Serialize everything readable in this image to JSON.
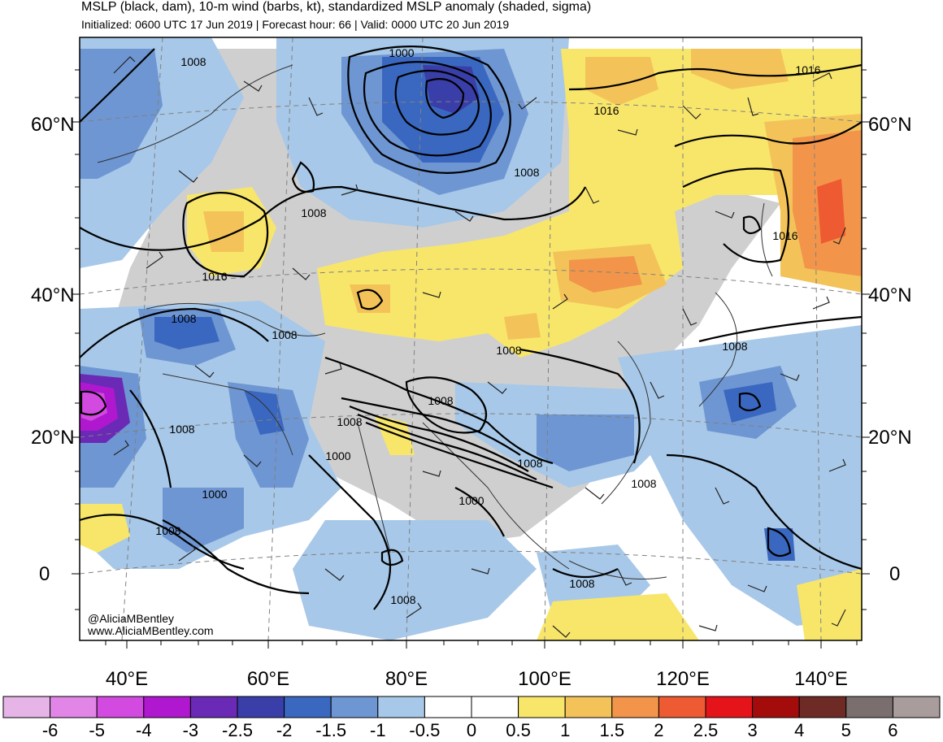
{
  "title": "MSLP (black, dam), 10-m wind (barbs, kt), standardized MSLP anomaly (shaded, sigma)",
  "subtitle": "Initialized: 0600 UTC 17 Jun 2019 | Forecast hour: 66 | Valid: 0000 UTC 20 Jun 2019",
  "lat_labels": [
    "60°N",
    "40°N",
    "20°N",
    "0"
  ],
  "lon_labels": [
    "40°E",
    "60°E",
    "80°E",
    "100°E",
    "120°E",
    "140°E"
  ],
  "contour_labels": [
    "1008",
    "1000",
    "1016",
    "1008",
    "1016",
    "1016",
    "1016",
    "1008",
    "1008",
    "1008",
    "1008",
    "1008",
    "1008",
    "1008",
    "1000",
    "1000",
    "1008",
    "1008",
    "1008",
    "1000",
    "1008",
    "1008",
    "1008"
  ],
  "credits": [
    "@AliciaMBentley",
    "www.AliciaMBentley.com"
  ],
  "colorbar": {
    "labels": [
      "-6",
      "-5",
      "-4",
      "-3",
      "-2.5",
      "-2",
      "-1.5",
      "-1",
      "-0.5",
      "0",
      "0.5",
      "1",
      "1.5",
      "2",
      "2.5",
      "3",
      "4",
      "5",
      "6"
    ],
    "colors": [
      "#e6b4e6",
      "#e186e6",
      "#d24ae0",
      "#b018d0",
      "#6a2ab5",
      "#3a3ea8",
      "#3a68c0",
      "#6e96d2",
      "#a7c8e8",
      "#ffffff",
      "#ffffff",
      "#f8e66a",
      "#f3c35a",
      "#f2954a",
      "#ee5a32",
      "#e4141a",
      "#a40c0c",
      "#6e2a24",
      "#7a6e6e",
      "#a89c9c"
    ]
  },
  "colors": {
    "land_gray": "#cfcfcf",
    "ocean": "#ffffff",
    "contour": "#000000"
  }
}
